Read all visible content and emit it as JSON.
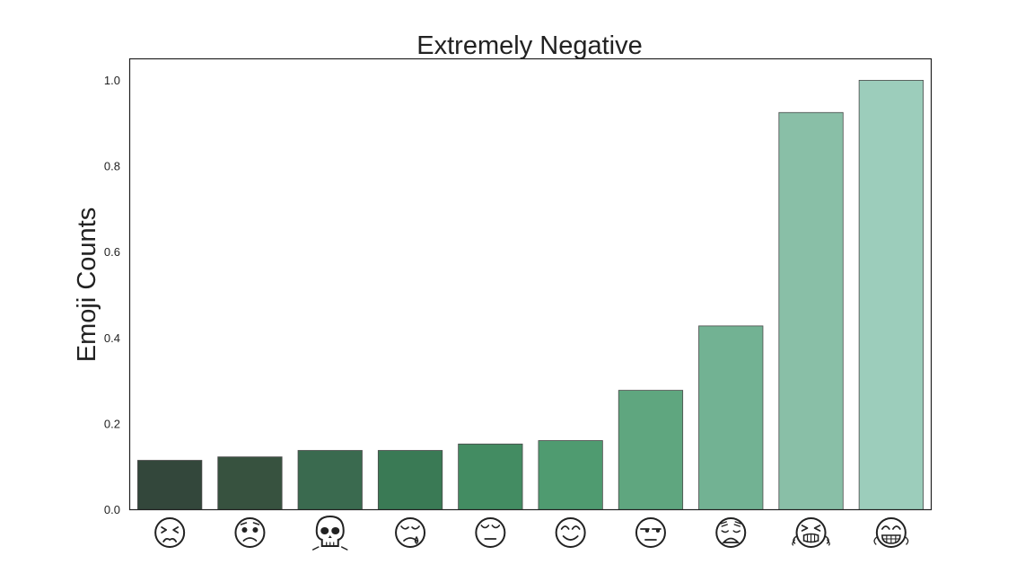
{
  "chart_data": {
    "type": "bar",
    "title": "Extremely Negative",
    "xlabel": "",
    "ylabel": "Emoji Counts",
    "ylim": [
      0.0,
      1.05
    ],
    "yticks": [
      "0.0",
      "0.2",
      "0.4",
      "0.6",
      "0.8",
      "1.0"
    ],
    "ytick_values": [
      0.0,
      0.2,
      0.4,
      0.6,
      0.8,
      1.0
    ],
    "grid": false,
    "legend": "none",
    "categories": [
      "confounded-face",
      "worried-face",
      "skull",
      "crying-face",
      "relieved-face",
      "smiling-face",
      "unamused-face",
      "weary-face",
      "loudly-crying-face",
      "grimacing-face"
    ],
    "values": [
      0.115,
      0.123,
      0.138,
      0.138,
      0.153,
      0.161,
      0.278,
      0.428,
      0.925,
      1.0
    ],
    "colors": [
      "#33473b",
      "#37523f",
      "#3a6a4f",
      "#3a7a55",
      "#438c62",
      "#4f9b70",
      "#5fa67f",
      "#72b293",
      "#89bfa7",
      "#9ccdbb"
    ],
    "edge_color": "#4a4a4a",
    "axis_color": "#222222",
    "text_color": "#222222"
  }
}
